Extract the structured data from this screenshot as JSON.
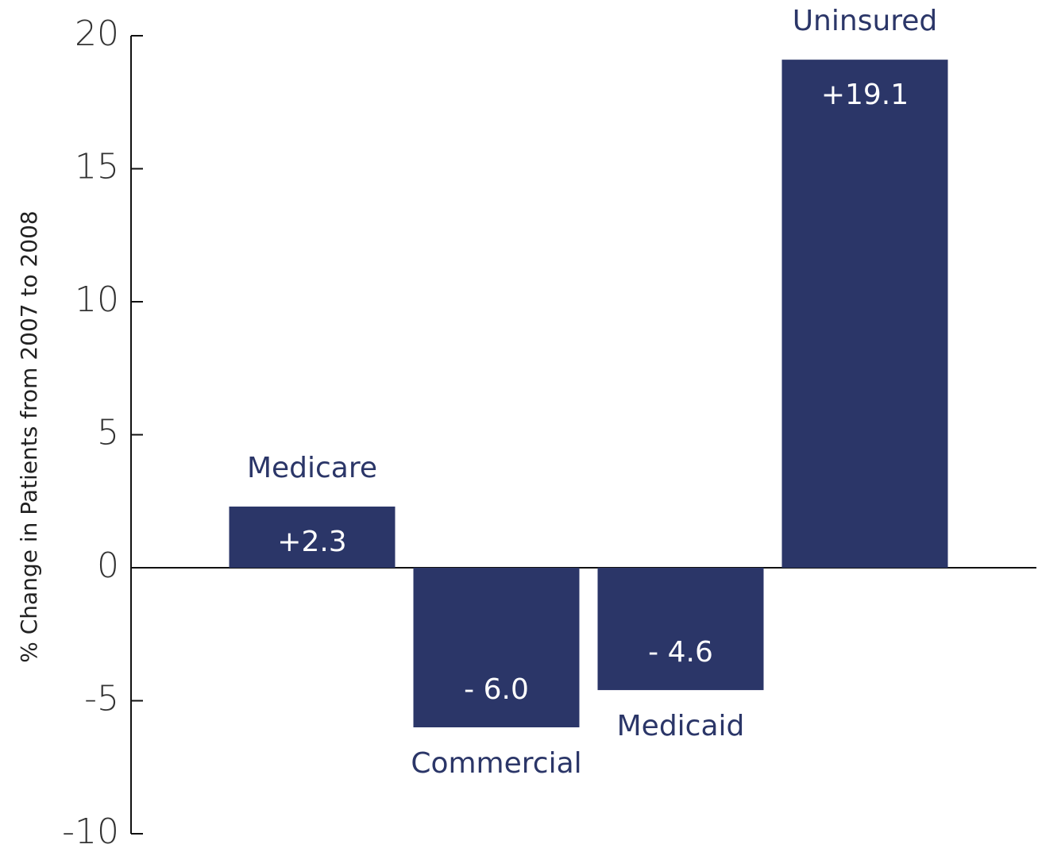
{
  "chart_data": {
    "type": "bar",
    "y_axis_label": "% Change in Patients from 2007 to 2008",
    "categories": [
      "Medicare",
      "Commercial",
      "Medicaid",
      "Uninsured"
    ],
    "values": [
      2.3,
      -6.0,
      -4.6,
      19.1
    ],
    "value_labels": [
      "+2.3",
      "- 6.0",
      "- 4.6",
      "+19.1"
    ],
    "color": "#2b3668",
    "ylim": [
      -10,
      20
    ],
    "yticks": [
      -10,
      -5,
      0,
      5,
      10,
      15,
      20
    ],
    "grid": false
  }
}
